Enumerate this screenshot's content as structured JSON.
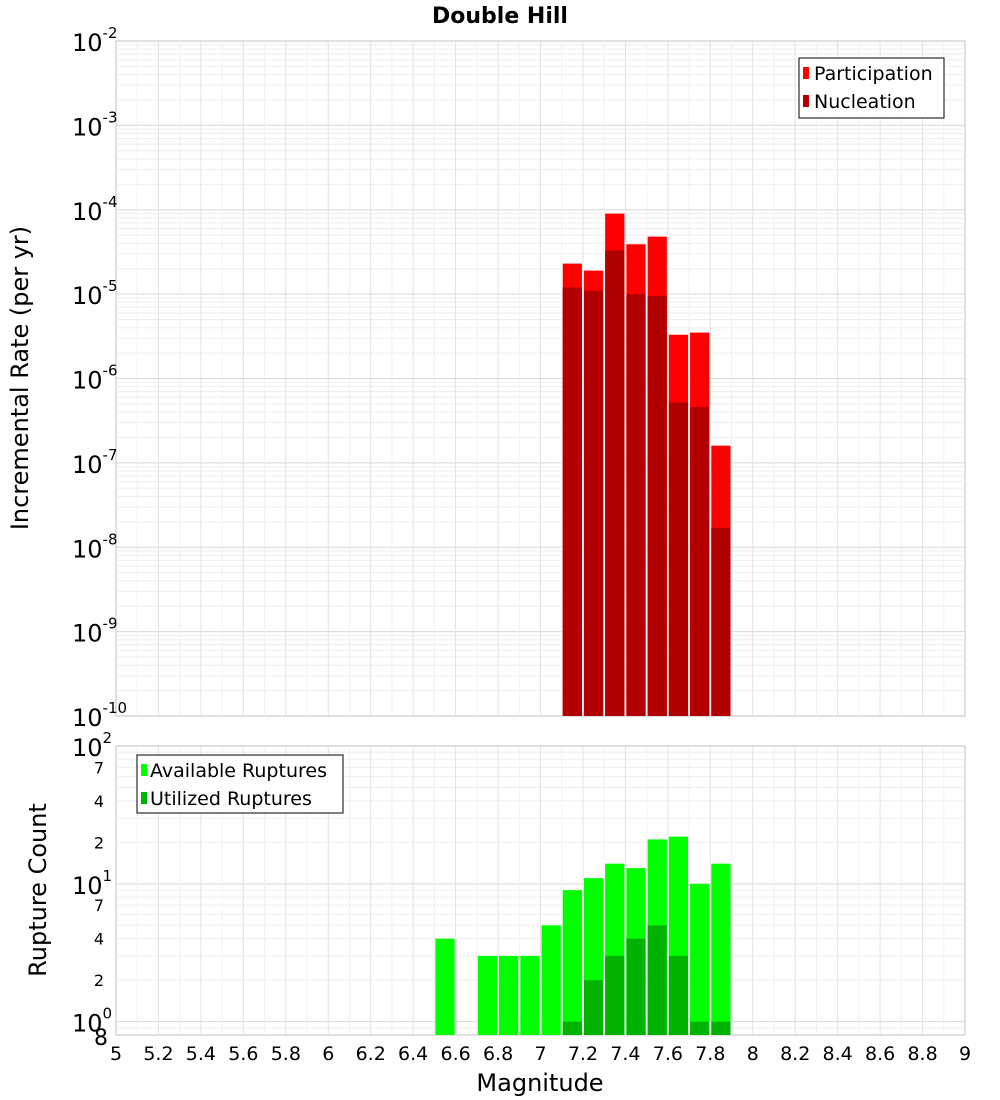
{
  "chart_data": [
    {
      "type": "bar",
      "title": "Double Hill",
      "xlabel": "Magnitude",
      "ylabel": "Incremental Rate (per yr)",
      "yscale": "log",
      "xlim": [
        5,
        9
      ],
      "ylim": [
        1e-10,
        0.01
      ],
      "grid": true,
      "legend_position": "top-right",
      "bin_width": 0.1,
      "series": [
        {
          "name": "Participation",
          "color": "#ff0000",
          "x": [
            7.15,
            7.25,
            7.35,
            7.45,
            7.55,
            7.65,
            7.75,
            7.85
          ],
          "values": [
            2.3e-05,
            1.9e-05,
            9e-05,
            3.9e-05,
            4.8e-05,
            3.3e-06,
            3.5e-06,
            1.6e-07
          ]
        },
        {
          "name": "Nucleation",
          "color": "#b20000",
          "x": [
            7.15,
            7.25,
            7.35,
            7.45,
            7.55,
            7.65,
            7.75,
            7.85
          ],
          "values": [
            1.2e-05,
            1.1e-05,
            3.3e-05,
            1e-05,
            9.5e-06,
            5.2e-07,
            4.6e-07,
            1.7e-08
          ]
        }
      ]
    },
    {
      "type": "bar",
      "title": "",
      "xlabel": "Magnitude",
      "ylabel": "Rupture Count",
      "yscale": "log",
      "xlim": [
        5,
        9
      ],
      "ylim": [
        0.8,
        100
      ],
      "grid": true,
      "legend_position": "top-left",
      "bin_width": 0.1,
      "series": [
        {
          "name": "Available Ruptures",
          "color": "#00ff00",
          "x": [
            6.55,
            6.75,
            6.85,
            6.95,
            7.05,
            7.15,
            7.25,
            7.35,
            7.45,
            7.55,
            7.65,
            7.75,
            7.85
          ],
          "values": [
            4,
            3,
            3,
            3,
            5,
            9,
            11,
            14,
            13,
            21,
            22,
            10,
            14
          ]
        },
        {
          "name": "Utilized Ruptures",
          "color": "#00b300",
          "x": [
            7.15,
            7.25,
            7.35,
            7.45,
            7.55,
            7.65,
            7.75,
            7.85
          ],
          "values": [
            1,
            2,
            3,
            4,
            5,
            3,
            1,
            1
          ]
        }
      ]
    }
  ],
  "top_y_ticks": [
    {
      "base": "10",
      "exp": "-2",
      "value": 0.01
    },
    {
      "base": "10",
      "exp": "-3",
      "value": 0.001
    },
    {
      "base": "10",
      "exp": "-4",
      "value": 0.0001
    },
    {
      "base": "10",
      "exp": "-5",
      "value": 1e-05
    },
    {
      "base": "10",
      "exp": "-6",
      "value": 1e-06
    },
    {
      "base": "10",
      "exp": "-7",
      "value": 1e-07
    },
    {
      "base": "10",
      "exp": "-8",
      "value": 1e-08
    },
    {
      "base": "10",
      "exp": "-9",
      "value": 1e-09
    },
    {
      "base": "10",
      "exp": "-10",
      "value": 1e-10
    }
  ],
  "bottom_y_major_ticks": [
    {
      "base": "10",
      "exp": "2",
      "value": 100
    },
    {
      "base": "10",
      "exp": "1",
      "value": 10
    },
    {
      "base": "10",
      "exp": "0",
      "value": 1
    }
  ],
  "bottom_y_minor_ticks": [
    {
      "label": "7",
      "value": 70
    },
    {
      "label": "4",
      "value": 40
    },
    {
      "label": "2",
      "value": 20
    },
    {
      "label": "7",
      "value": 7
    },
    {
      "label": "4",
      "value": 4
    },
    {
      "label": "2",
      "value": 2
    },
    {
      "label": "8",
      "value": 0.8
    }
  ],
  "x_ticks": [
    "5",
    "5.2",
    "5.4",
    "5.6",
    "5.8",
    "6",
    "6.2",
    "6.4",
    "6.6",
    "6.8",
    "7",
    "7.2",
    "7.4",
    "7.6",
    "7.8",
    "8",
    "8.2",
    "8.4",
    "8.6",
    "8.8",
    "9"
  ]
}
